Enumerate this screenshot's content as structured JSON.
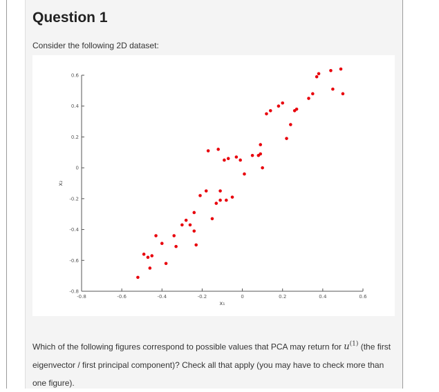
{
  "question": {
    "title": "Question 1",
    "intro": "Consider the following 2D dataset:",
    "prompt_before": "Which of the following figures correspond to possible values that PCA may return for",
    "math_var": "u",
    "math_sup": "(1)",
    "prompt_after": "(the first eigenvector / first principal component)? Check all that apply (you may have to check more than one figure)."
  },
  "chart_data": {
    "type": "scatter",
    "xlabel": "x₁",
    "ylabel": "x₂",
    "xlim": [
      -0.8,
      0.6
    ],
    "ylim": [
      -0.8,
      0.6
    ],
    "x_ticks": [
      "-0.8",
      "-0.6",
      "-0.4",
      "-0.2",
      "0",
      "0.2",
      "0.4",
      "0.6"
    ],
    "y_ticks": [
      "-0.8",
      "-0.6",
      "-0.4",
      "-0.2",
      "0",
      "0.2",
      "0.4",
      "0.6"
    ],
    "marker_color": "#e8000b",
    "points": [
      [
        -0.52,
        -0.71
      ],
      [
        -0.49,
        -0.56
      ],
      [
        -0.47,
        -0.58
      ],
      [
        -0.46,
        -0.65
      ],
      [
        -0.45,
        -0.57
      ],
      [
        -0.43,
        -0.44
      ],
      [
        -0.4,
        -0.49
      ],
      [
        -0.38,
        -0.62
      ],
      [
        -0.34,
        -0.44
      ],
      [
        -0.33,
        -0.51
      ],
      [
        -0.3,
        -0.37
      ],
      [
        -0.28,
        -0.34
      ],
      [
        -0.26,
        -0.37
      ],
      [
        -0.24,
        -0.29
      ],
      [
        -0.24,
        -0.41
      ],
      [
        -0.23,
        -0.5
      ],
      [
        -0.21,
        -0.18
      ],
      [
        -0.18,
        -0.15
      ],
      [
        -0.17,
        0.11
      ],
      [
        -0.15,
        -0.33
      ],
      [
        -0.13,
        -0.23
      ],
      [
        -0.12,
        0.12
      ],
      [
        -0.11,
        -0.15
      ],
      [
        -0.11,
        -0.21
      ],
      [
        -0.09,
        0.05
      ],
      [
        -0.08,
        -0.21
      ],
      [
        -0.07,
        0.06
      ],
      [
        -0.05,
        -0.19
      ],
      [
        -0.03,
        0.07
      ],
      [
        -0.01,
        0.05
      ],
      [
        0.01,
        -0.04
      ],
      [
        0.05,
        0.08
      ],
      [
        0.08,
        0.08
      ],
      [
        0.09,
        0.15
      ],
      [
        0.09,
        0.09
      ],
      [
        0.1,
        0.0
      ],
      [
        0.12,
        0.35
      ],
      [
        0.14,
        0.37
      ],
      [
        0.18,
        0.4
      ],
      [
        0.2,
        0.42
      ],
      [
        0.22,
        0.19
      ],
      [
        0.24,
        0.28
      ],
      [
        0.26,
        0.37
      ],
      [
        0.27,
        0.38
      ],
      [
        0.33,
        0.45
      ],
      [
        0.35,
        0.48
      ],
      [
        0.37,
        0.59
      ],
      [
        0.38,
        0.61
      ],
      [
        0.44,
        0.63
      ],
      [
        0.45,
        0.51
      ],
      [
        0.49,
        0.64
      ],
      [
        0.5,
        0.48
      ]
    ]
  }
}
